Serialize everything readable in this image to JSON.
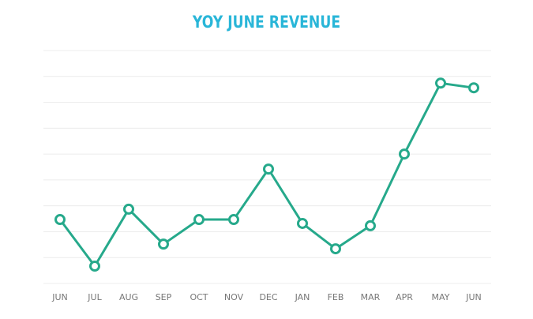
{
  "chart_data": {
    "type": "line",
    "title": "YOY JUNE REVENUE",
    "xlabel": "",
    "ylabel": "",
    "categories": [
      "JUN",
      "JUL",
      "AUG",
      "SEP",
      "OCT",
      "NOV",
      "DEC",
      "JAN",
      "FEB",
      "MAR",
      "APR",
      "MAY",
      "JUN"
    ],
    "series": [
      {
        "name": "Revenue",
        "color": "#26a98b",
        "values": [
          2.47,
          0.67,
          2.87,
          1.52,
          2.47,
          2.47,
          4.42,
          2.32,
          1.34,
          2.23,
          5.0,
          7.74,
          7.56
        ]
      }
    ],
    "ylim": [
      0,
      9
    ],
    "y_tick_labels_shown": false,
    "grid": true,
    "gridline_count": 10,
    "legend": "none"
  },
  "colors": {
    "title": "#29b6d8",
    "line": "#26a98b",
    "grid": "#ececec",
    "axis_labels": "#777777"
  }
}
